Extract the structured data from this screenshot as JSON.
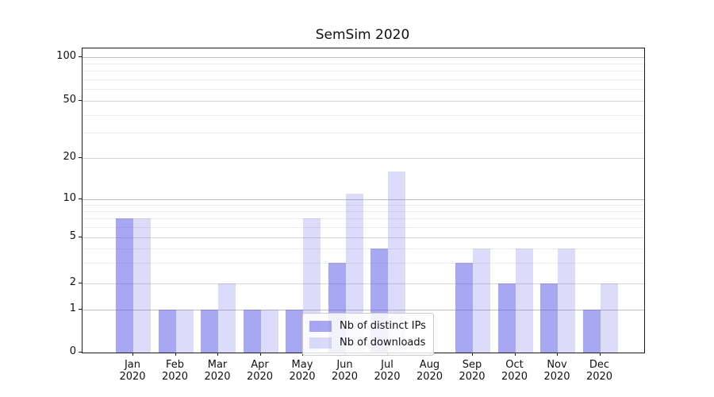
{
  "chart_data": {
    "type": "bar",
    "title": "SemSim 2020",
    "categories": [
      "Jan\n2020",
      "Feb\n2020",
      "Mar\n2020",
      "Apr\n2020",
      "May\n2020",
      "Jun\n2020",
      "Jul\n2020",
      "Aug\n2020",
      "Sep\n2020",
      "Oct\n2020",
      "Nov\n2020",
      "Dec\n2020"
    ],
    "series": [
      {
        "name": "Nb of distinct IPs",
        "color": "rgba(80,80,230,0.5)",
        "values": [
          7,
          1,
          1,
          1,
          1,
          3,
          4,
          0,
          3,
          2,
          2,
          1
        ]
      },
      {
        "name": "Nb of downloads",
        "color": "rgba(80,80,230,0.2)",
        "values": [
          7,
          1,
          2,
          1,
          7,
          11,
          16,
          0,
          4,
          4,
          4,
          2
        ]
      }
    ],
    "yscale": "symlog",
    "yticks": [
      0,
      1,
      2,
      5,
      10,
      20,
      50,
      100
    ],
    "minor_yticks": [
      3,
      4,
      6,
      7,
      8,
      9,
      30,
      40,
      60,
      70,
      80,
      90
    ],
    "ylim": [
      0,
      100
    ],
    "grid": true,
    "legend_position": "lower center",
    "colors": {
      "axis": "#1a1a1a",
      "grid_major": "#d7d7d7",
      "grid_minor": "#ebebeb"
    }
  }
}
